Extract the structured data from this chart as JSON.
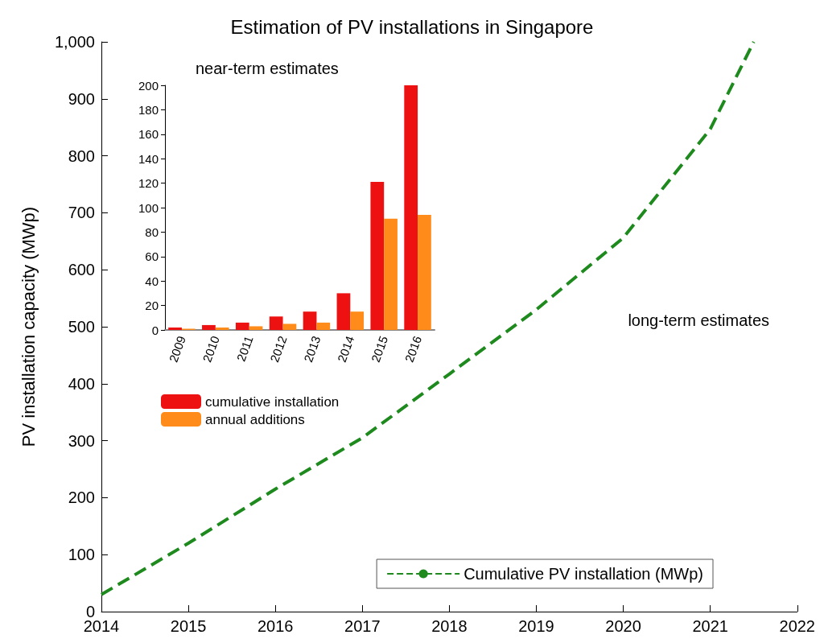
{
  "chart_data": [
    {
      "type": "line",
      "title": "Estimation of PV installations in Singapore",
      "ylabel": "PV installation capacity (MWp)",
      "annotations": [
        "long-term estimates"
      ],
      "x": [
        2014,
        2015,
        2016,
        2017,
        2018,
        2019,
        2020,
        2021,
        2021.5
      ],
      "series": [
        {
          "name": "Cumulative PV installation (MWp)",
          "color": "#1e8a1e",
          "values": [
            30,
            120,
            215,
            305,
            417,
            530,
            656,
            847,
            1000
          ]
        }
      ],
      "xlim": [
        2014,
        2022
      ],
      "xticks": [
        2014,
        2015,
        2016,
        2017,
        2018,
        2019,
        2020,
        2021,
        2022
      ],
      "ylim": [
        0,
        1000
      ],
      "yticks": [
        0,
        100,
        200,
        300,
        400,
        500,
        600,
        700,
        800,
        900,
        {
          "value": 1000,
          "label": "1,000"
        }
      ],
      "grid": false,
      "legend": "bottom right",
      "line_style": "dashed",
      "marker": "none"
    },
    {
      "type": "bar",
      "title": "near-term estimates",
      "categories": [
        "2009",
        "2010",
        "2011",
        "2012",
        "2013",
        "2014",
        "2015",
        "2016"
      ],
      "series": [
        {
          "name": "cumulative installation",
          "color": "#ee1111",
          "values": [
            2,
            4,
            6,
            11,
            15,
            30,
            121,
            200
          ]
        },
        {
          "name": "annual additions",
          "color": "#ff8c1a",
          "values": [
            1,
            2,
            3,
            5,
            6,
            15,
            91,
            94
          ]
        }
      ],
      "ylim": [
        0,
        200
      ],
      "yticks": [
        0,
        20,
        40,
        60,
        80,
        100,
        120,
        140,
        160,
        180,
        200
      ],
      "grid": false,
      "legend": "bottom left"
    }
  ]
}
